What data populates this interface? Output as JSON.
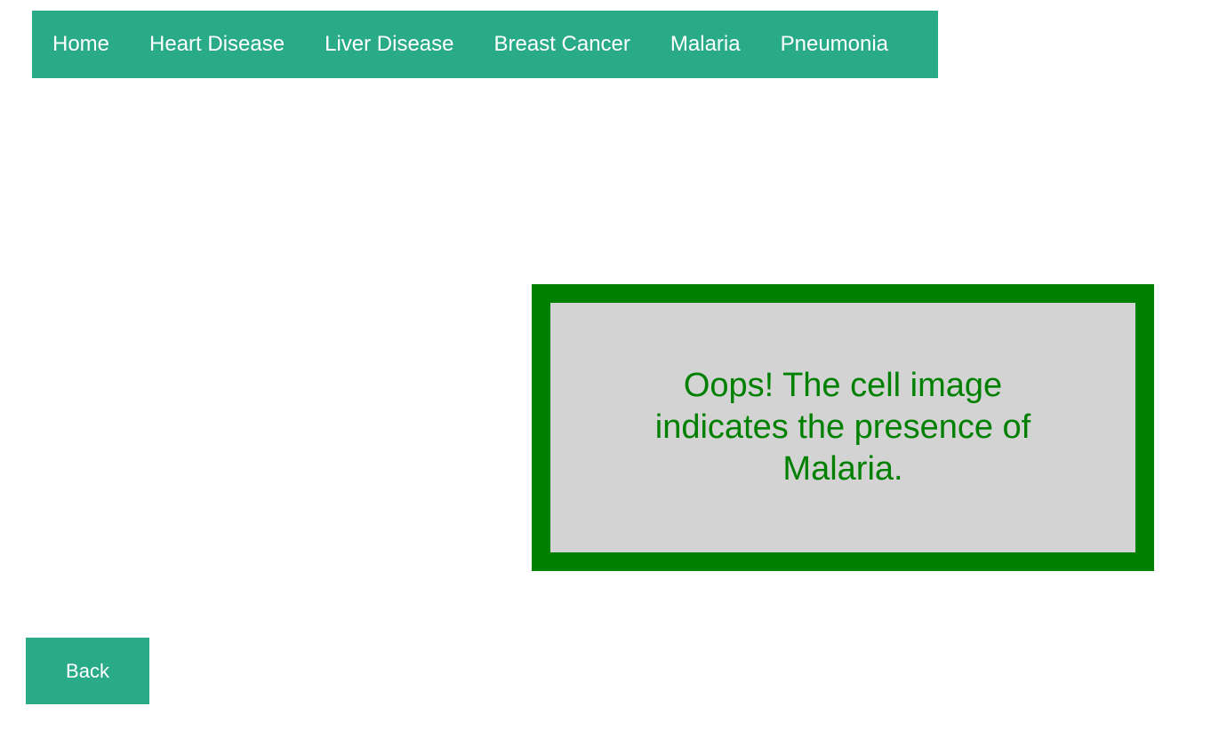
{
  "nav": {
    "items": [
      {
        "label": "Home"
      },
      {
        "label": "Heart Disease"
      },
      {
        "label": "Liver Disease"
      },
      {
        "label": "Breast Cancer"
      },
      {
        "label": "Malaria"
      },
      {
        "label": "Pneumonia"
      }
    ]
  },
  "result": {
    "message": "Oops! The cell image indicates the presence of Malaria."
  },
  "back_button": {
    "label": "Back"
  },
  "colors": {
    "accent": "#29ab87",
    "result_border": "#008000",
    "result_text": "#008000",
    "result_background": "#d3d3d3"
  }
}
